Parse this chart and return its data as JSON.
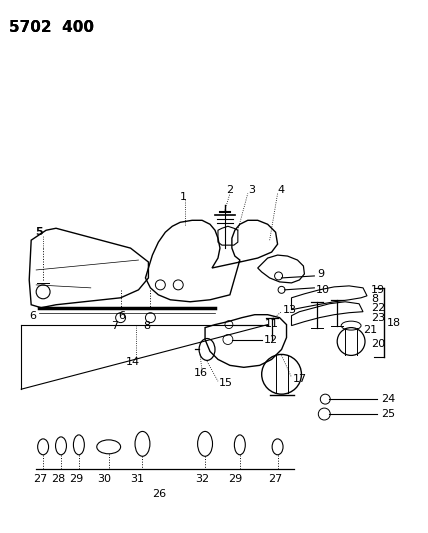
{
  "title": "5702  400",
  "bg_color": "#ffffff",
  "line_color": "#000000",
  "title_fontsize": 11,
  "label_fontsize": 8,
  "figsize": [
    4.28,
    5.33
  ],
  "dpi": 100
}
